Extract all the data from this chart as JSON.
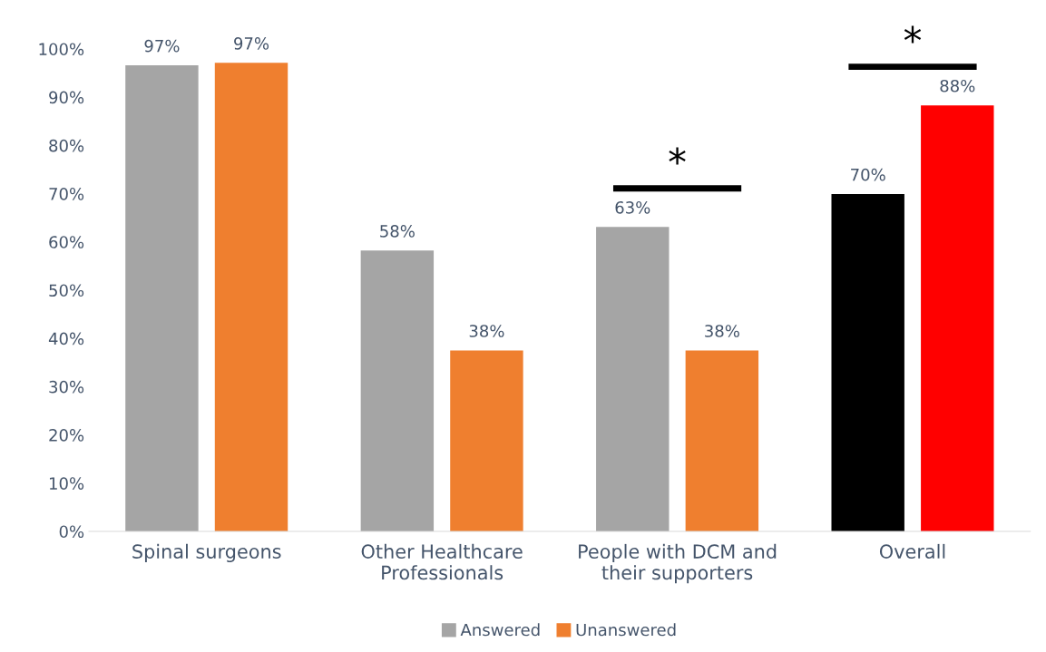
{
  "chart_data": {
    "type": "bar",
    "categories": [
      "Spinal surgeons",
      "Other Healthcare\nProfessionals",
      "People with DCM and\ntheir supporters",
      "Overall"
    ],
    "series": [
      {
        "name": "Answered",
        "color": "#a5a5a5",
        "colors": [
          "#a5a5a5",
          "#a5a5a5",
          "#a5a5a5",
          "#000000"
        ],
        "values": [
          96.6,
          58.2,
          63.1,
          69.9
        ],
        "value_labels": [
          "97%",
          "58%",
          "63%",
          "70%"
        ]
      },
      {
        "name": "Unanswered",
        "color": "#ef7f2f",
        "colors": [
          "#ef7f2f",
          "#ef7f2f",
          "#ef7f2f",
          "#ff0000"
        ],
        "values": [
          97.1,
          37.5,
          37.5,
          88.3
        ],
        "value_labels": [
          "97%",
          "38%",
          "38%",
          "88%"
        ]
      }
    ],
    "ylim": [
      0,
      100
    ],
    "yticks": [
      {
        "value": 0,
        "label": "0%"
      },
      {
        "value": 10,
        "label": "10%"
      },
      {
        "value": 20,
        "label": "20%"
      },
      {
        "value": 30,
        "label": "30%"
      },
      {
        "value": 40,
        "label": "40%"
      },
      {
        "value": 50,
        "label": "50%"
      },
      {
        "value": 60,
        "label": "60%"
      },
      {
        "value": 70,
        "label": "70%"
      },
      {
        "value": 80,
        "label": "80%"
      },
      {
        "value": 90,
        "label": "90%"
      },
      {
        "value": 100,
        "label": "100%"
      }
    ],
    "annotations": [
      "*",
      "*"
    ],
    "grid": false,
    "legend": "bottom"
  }
}
